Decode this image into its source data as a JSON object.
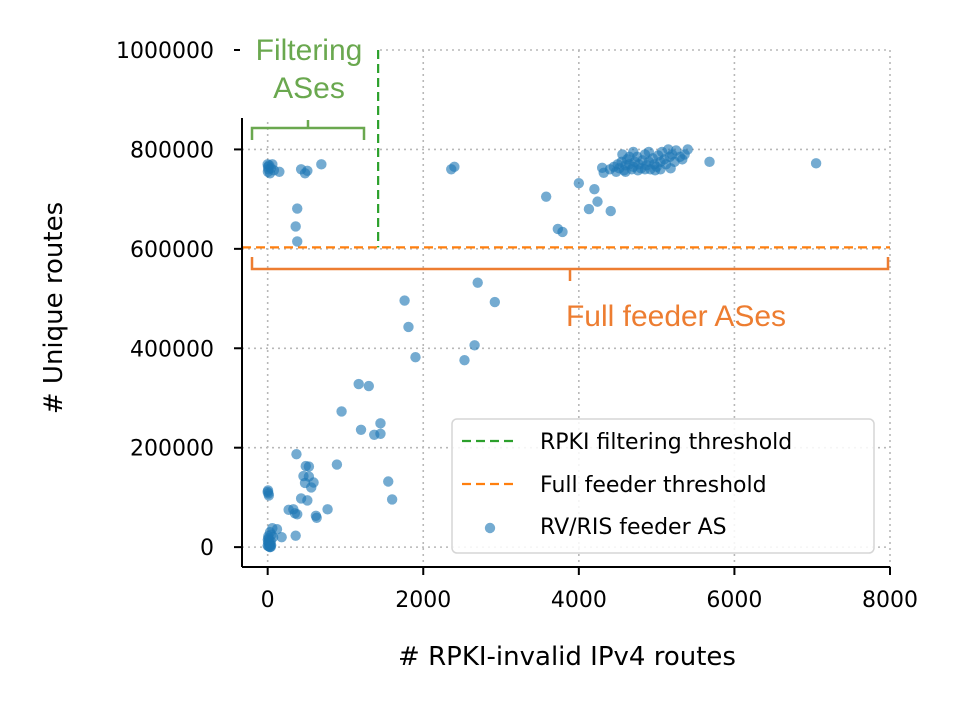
{
  "chart_data": {
    "type": "scatter",
    "xlabel": "# RPKI-invalid IPv4 routes",
    "ylabel": "# Unique routes",
    "xlim": [
      -330,
      8000
    ],
    "ylim": [
      -40000,
      1000000
    ],
    "xticks": [
      0,
      2000,
      4000,
      6000,
      8000
    ],
    "xtick_labels": [
      "0",
      "2000",
      "4000",
      "6000",
      "8000"
    ],
    "yticks": [
      0,
      200000,
      400000,
      600000,
      800000,
      1000000
    ],
    "ytick_labels": [
      "0",
      "200000",
      "400000",
      "600000",
      "800000",
      "1000000"
    ],
    "grid": true,
    "legend_position": "lower-right",
    "thresholds": {
      "rpki_filtering_x": 1420,
      "full_feeder_y": 603000
    },
    "annotations": {
      "filtering": {
        "lines": [
          "Filtering",
          "ASes"
        ],
        "color": "#6aa84f"
      },
      "full_feeder": {
        "text": "Full feeder ASes",
        "color": "#ed7d31"
      }
    },
    "series": [
      {
        "name": "RPKI filtering threshold",
        "kind": "vline",
        "color": "#2ca02c"
      },
      {
        "name": "Full feeder threshold",
        "kind": "hline",
        "color": "#ff7f0e"
      },
      {
        "name": "RV/RIS feeder AS",
        "kind": "scatter",
        "color": "#1f77b4",
        "points": [
          [
            0,
            770000
          ],
          [
            5,
            765000
          ],
          [
            10,
            760000
          ],
          [
            3,
            755000
          ],
          [
            20,
            768000
          ],
          [
            40,
            762000
          ],
          [
            60,
            770000
          ],
          [
            30,
            752000
          ],
          [
            80,
            758000
          ],
          [
            150,
            755000
          ],
          [
            430,
            760000
          ],
          [
            510,
            757000
          ],
          [
            480,
            752000
          ],
          [
            690,
            770000
          ],
          [
            380,
            681000
          ],
          [
            360,
            645000
          ],
          [
            380,
            615000
          ],
          [
            2360,
            760000
          ],
          [
            2400,
            765000
          ],
          [
            3580,
            705000
          ],
          [
            3730,
            640000
          ],
          [
            3790,
            634000
          ],
          [
            4000,
            732000
          ],
          [
            4130,
            680000
          ],
          [
            4200,
            720000
          ],
          [
            4240,
            695000
          ],
          [
            4300,
            763000
          ],
          [
            4320,
            753000
          ],
          [
            4410,
            676000
          ],
          [
            4400,
            760000
          ],
          [
            4450,
            765000
          ],
          [
            4480,
            755000
          ],
          [
            4500,
            770000
          ],
          [
            4520,
            762000
          ],
          [
            4550,
            775000
          ],
          [
            4580,
            758000
          ],
          [
            4600,
            768000
          ],
          [
            4620,
            780000
          ],
          [
            4650,
            770000
          ],
          [
            4680,
            760000
          ],
          [
            4700,
            765000
          ],
          [
            4720,
            775000
          ],
          [
            4750,
            785000
          ],
          [
            4770,
            770000
          ],
          [
            4800,
            762000
          ],
          [
            4820,
            778000
          ],
          [
            4850,
            790000
          ],
          [
            4870,
            768000
          ],
          [
            4900,
            775000
          ],
          [
            4920,
            760000
          ],
          [
            4950,
            782000
          ],
          [
            4970,
            770000
          ],
          [
            5000,
            765000
          ],
          [
            5020,
            788000
          ],
          [
            5050,
            775000
          ],
          [
            5070,
            795000
          ],
          [
            5100,
            780000
          ],
          [
            5120,
            770000
          ],
          [
            5150,
            800000
          ],
          [
            5170,
            785000
          ],
          [
            5200,
            790000
          ],
          [
            5230,
            775000
          ],
          [
            5250,
            798000
          ],
          [
            5300,
            785000
          ],
          [
            5330,
            780000
          ],
          [
            5360,
            790000
          ],
          [
            5400,
            800000
          ],
          [
            5680,
            775000
          ],
          [
            7050,
            772000
          ],
          [
            4560,
            790000
          ],
          [
            4600,
            755000
          ],
          [
            4650,
            785000
          ],
          [
            4700,
            795000
          ],
          [
            4760,
            758000
          ],
          [
            4850,
            760000
          ],
          [
            4900,
            795000
          ],
          [
            4980,
            758000
          ],
          [
            5050,
            760000
          ],
          [
            5180,
            762000
          ],
          [
            2700,
            532000
          ],
          [
            2920,
            493000
          ],
          [
            1760,
            496000
          ],
          [
            1810,
            443000
          ],
          [
            2660,
            406000
          ],
          [
            1900,
            382000
          ],
          [
            2530,
            376000
          ],
          [
            1170,
            328000
          ],
          [
            1300,
            324000
          ],
          [
            1200,
            236000
          ],
          [
            950,
            273000
          ],
          [
            1450,
            249000
          ],
          [
            1370,
            226000
          ],
          [
            1450,
            228000
          ],
          [
            890,
            166000
          ],
          [
            1550,
            132000
          ],
          [
            1600,
            96000
          ],
          [
            370,
            187000
          ],
          [
            490,
            163000
          ],
          [
            530,
            162000
          ],
          [
            460,
            143000
          ],
          [
            530,
            142000
          ],
          [
            480,
            129000
          ],
          [
            590,
            130000
          ],
          [
            560,
            120000
          ],
          [
            430,
            98000
          ],
          [
            510,
            94000
          ],
          [
            330,
            76000
          ],
          [
            770,
            76000
          ],
          [
            620,
            63000
          ],
          [
            380,
            66000
          ],
          [
            350,
            68000
          ],
          [
            270,
            75000
          ],
          [
            630,
            59000
          ],
          [
            360,
            23000
          ],
          [
            180,
            20000
          ],
          [
            5,
            114000
          ],
          [
            10,
            108000
          ],
          [
            15,
            104000
          ],
          [
            0,
            111000
          ],
          [
            60,
            38000
          ],
          [
            120,
            36000
          ],
          [
            30,
            30000
          ],
          [
            50,
            25000
          ],
          [
            70,
            20000
          ],
          [
            10,
            18000
          ],
          [
            20,
            14000
          ],
          [
            40,
            12000
          ],
          [
            5,
            10000
          ],
          [
            15,
            8000
          ],
          [
            25,
            6000
          ],
          [
            35,
            5000
          ],
          [
            45,
            4000
          ],
          [
            0,
            3000
          ],
          [
            10,
            2000
          ],
          [
            20,
            1000
          ],
          [
            30,
            0
          ],
          [
            40,
            500
          ],
          [
            2,
            15000
          ],
          [
            8,
            22000
          ]
        ]
      }
    ]
  }
}
